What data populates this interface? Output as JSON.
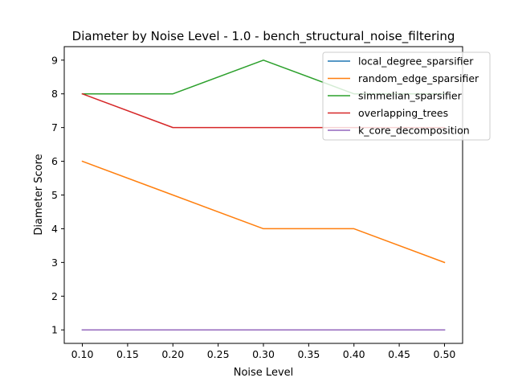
{
  "chart_data": {
    "type": "line",
    "title": "Diameter by Noise Level - 1.0 - bench_structural_noise_filtering",
    "xlabel": "Noise Level",
    "ylabel": "Diameter Score",
    "x": [
      0.1,
      0.2,
      0.3,
      0.4,
      0.5
    ],
    "xlim": [
      0.08,
      0.52
    ],
    "ylim": [
      0.6,
      9.4
    ],
    "x_ticks": [
      "0.10",
      "0.15",
      "0.20",
      "0.25",
      "0.30",
      "0.35",
      "0.40",
      "0.45",
      "0.50"
    ],
    "y_ticks": [
      "1",
      "2",
      "3",
      "4",
      "5",
      "6",
      "7",
      "8",
      "9"
    ],
    "grid": false,
    "legend_position": "top-right",
    "series": [
      {
        "name": "local_degree_sparsifier",
        "color": "#1f77b4",
        "values": [
          1,
          1,
          1,
          1,
          1
        ]
      },
      {
        "name": "random_edge_sparsifier",
        "color": "#ff7f0e",
        "values": [
          6,
          5,
          4,
          4,
          3
        ]
      },
      {
        "name": "simmelian_sparsifier",
        "color": "#2ca02c",
        "values": [
          8,
          8,
          9,
          8,
          8
        ]
      },
      {
        "name": "overlapping_trees",
        "color": "#d62728",
        "values": [
          8,
          7,
          7,
          7,
          7
        ]
      },
      {
        "name": "k_core_decomposition",
        "color": "#9467bd",
        "values": [
          1,
          1,
          1,
          1,
          1
        ]
      }
    ]
  }
}
